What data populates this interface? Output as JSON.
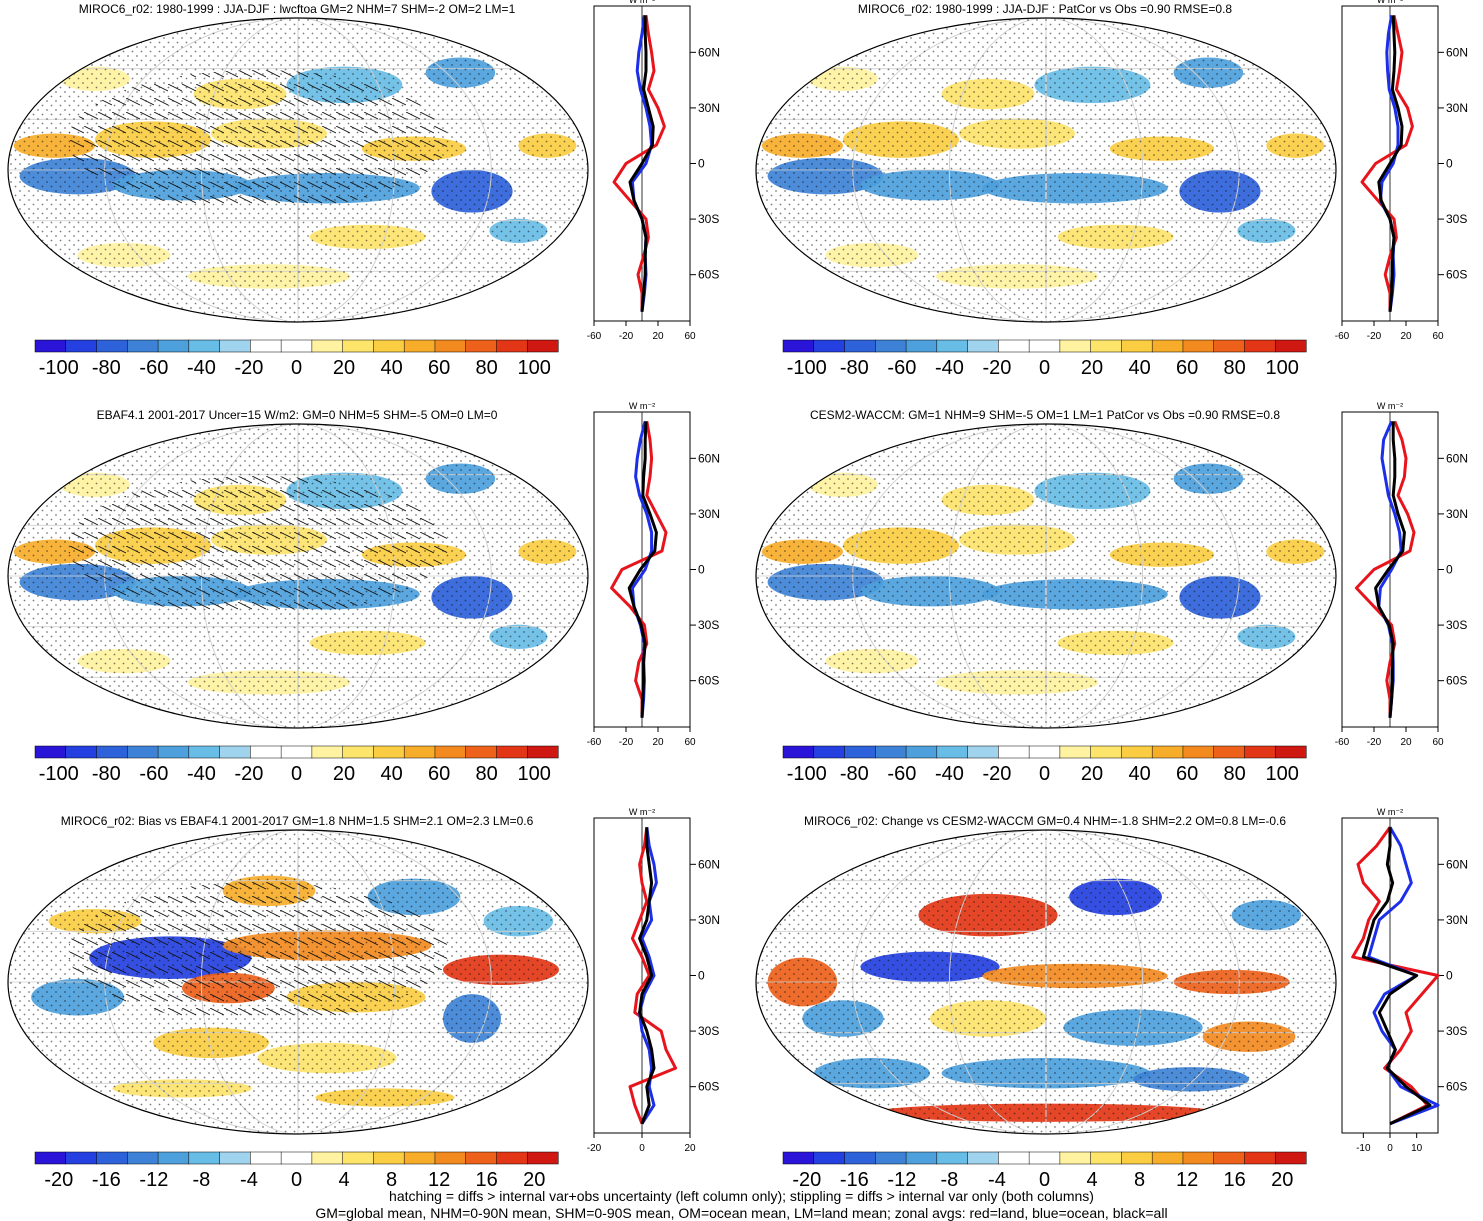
{
  "chart_data": [
    {
      "type": "heatmap",
      "title": "MIROC6_r02: 1980-1999 : JJA-DJF : lwcftoa GM=2 NHM=7 SHM=-2 OM=2 LM=1",
      "colorbar_ticks": [
        "-100",
        "-80",
        "-60",
        "-40",
        "-20",
        "0",
        "20",
        "40",
        "60",
        "80",
        "100"
      ],
      "colorbar_range": [
        -110,
        110
      ],
      "profile_x_ticks": [
        "-60",
        "-20",
        "20",
        "60"
      ],
      "profile_x_range": [
        -60,
        60
      ],
      "profile_lat_ticks": [
        "60N",
        "30N",
        "0",
        "30S",
        "60S"
      ],
      "profile_unit": "W m⁻²",
      "series": [
        {
          "name": "land",
          "color": "#e8141c",
          "lat": [
            80,
            70,
            60,
            50,
            40,
            30,
            20,
            10,
            0,
            -10,
            -20,
            -30,
            -40,
            -50,
            -60,
            -70,
            -80
          ],
          "values": [
            5,
            8,
            12,
            15,
            8,
            20,
            28,
            18,
            -20,
            -35,
            -15,
            5,
            8,
            2,
            -5,
            0,
            0
          ]
        },
        {
          "name": "ocean",
          "color": "#1c2ee8",
          "lat": [
            80,
            70,
            60,
            50,
            40,
            30,
            20,
            10,
            0,
            -10,
            -20,
            -30,
            -40,
            -50,
            -60,
            -70,
            -80
          ],
          "values": [
            3,
            0,
            -4,
            -6,
            -2,
            5,
            10,
            12,
            5,
            -12,
            -10,
            0,
            5,
            4,
            5,
            3,
            0
          ]
        },
        {
          "name": "all",
          "color": "#000000",
          "lat": [
            80,
            70,
            60,
            50,
            40,
            30,
            20,
            10,
            0,
            -10,
            -20,
            -30,
            -40,
            -50,
            -60,
            -70,
            -80
          ],
          "values": [
            4,
            4,
            5,
            5,
            2,
            8,
            14,
            13,
            0,
            -15,
            -10,
            0,
            5,
            4,
            4,
            2,
            0
          ]
        }
      ]
    },
    {
      "type": "heatmap",
      "title": "MIROC6_r02: 1980-1999 : JJA-DJF : PatCor vs Obs =0.90 RMSE=0.8",
      "colorbar_ticks": [
        "-100",
        "-80",
        "-60",
        "-40",
        "-20",
        "0",
        "20",
        "40",
        "60",
        "80",
        "100"
      ],
      "colorbar_range": [
        -110,
        110
      ],
      "profile_x_ticks": [
        "-60",
        "-20",
        "20",
        "60"
      ],
      "profile_x_range": [
        -60,
        60
      ],
      "profile_lat_ticks": [
        "60N",
        "30N",
        "0",
        "30S",
        "60S"
      ],
      "profile_unit": "W m⁻²",
      "series": [
        {
          "name": "land",
          "color": "#e8141c",
          "lat": [
            80,
            70,
            60,
            50,
            40,
            30,
            20,
            10,
            0,
            -10,
            -20,
            -30,
            -40,
            -50,
            -60,
            -70,
            -80
          ],
          "values": [
            5,
            10,
            15,
            12,
            8,
            22,
            28,
            20,
            -18,
            -35,
            -15,
            5,
            8,
            0,
            -6,
            0,
            0
          ]
        },
        {
          "name": "ocean",
          "color": "#1c2ee8",
          "lat": [
            80,
            70,
            60,
            50,
            40,
            30,
            20,
            10,
            0,
            -10,
            -20,
            -30,
            -40,
            -50,
            -60,
            -70,
            -80
          ],
          "values": [
            2,
            -2,
            -4,
            -3,
            -1,
            6,
            10,
            10,
            4,
            -10,
            -12,
            0,
            5,
            4,
            5,
            3,
            0
          ]
        },
        {
          "name": "all",
          "color": "#000000",
          "lat": [
            80,
            70,
            60,
            50,
            40,
            30,
            20,
            10,
            0,
            -10,
            -20,
            -30,
            -40,
            -50,
            -60,
            -70,
            -80
          ],
          "values": [
            4,
            5,
            6,
            5,
            3,
            10,
            15,
            14,
            0,
            -14,
            -11,
            0,
            5,
            3,
            3,
            2,
            0
          ]
        }
      ]
    },
    {
      "type": "heatmap",
      "title": "EBAF4.1 2001-2017 Uncer=15 W/m2: GM=0 NHM=5 SHM=-5 OM=0 LM=0",
      "colorbar_ticks": [
        "-100",
        "-80",
        "-60",
        "-40",
        "-20",
        "0",
        "20",
        "40",
        "60",
        "80",
        "100"
      ],
      "colorbar_range": [
        -110,
        110
      ],
      "profile_x_ticks": [
        "-60",
        "-20",
        "20",
        "60"
      ],
      "profile_x_range": [
        -60,
        60
      ],
      "profile_lat_ticks": [
        "60N",
        "30N",
        "0",
        "30S",
        "60S"
      ],
      "profile_unit": "W m⁻²",
      "series": [
        {
          "name": "land",
          "color": "#e8141c",
          "lat": [
            80,
            70,
            60,
            50,
            40,
            30,
            20,
            10,
            0,
            -10,
            -20,
            -30,
            -40,
            -50,
            -60,
            -70,
            -80
          ],
          "values": [
            6,
            10,
            12,
            10,
            6,
            18,
            30,
            25,
            -25,
            -38,
            -15,
            3,
            6,
            -4,
            -8,
            0,
            0
          ]
        },
        {
          "name": "ocean",
          "color": "#1c2ee8",
          "lat": [
            80,
            70,
            60,
            50,
            40,
            30,
            20,
            10,
            0,
            -10,
            -20,
            -30,
            -40,
            -50,
            -60,
            -70,
            -80
          ],
          "values": [
            4,
            -2,
            -6,
            -8,
            -3,
            6,
            12,
            12,
            4,
            -12,
            -10,
            -2,
            3,
            2,
            3,
            2,
            0
          ]
        },
        {
          "name": "all",
          "color": "#000000",
          "lat": [
            80,
            70,
            60,
            50,
            40,
            30,
            20,
            10,
            0,
            -10,
            -20,
            -30,
            -40,
            -50,
            -60,
            -70,
            -80
          ],
          "values": [
            5,
            4,
            4,
            2,
            1,
            10,
            18,
            16,
            -2,
            -16,
            -10,
            -1,
            4,
            2,
            2,
            1,
            0
          ]
        }
      ]
    },
    {
      "type": "heatmap",
      "title": "CESM2-WACCM: GM=1 NHM=9 SHM=-5 OM=1 LM=1 PatCor vs Obs =0.90 RMSE=0.8",
      "colorbar_ticks": [
        "-100",
        "-80",
        "-60",
        "-40",
        "-20",
        "0",
        "20",
        "40",
        "60",
        "80",
        "100"
      ],
      "colorbar_range": [
        -110,
        110
      ],
      "profile_x_ticks": [
        "-60",
        "-20",
        "20",
        "60"
      ],
      "profile_x_range": [
        -60,
        60
      ],
      "profile_lat_ticks": [
        "60N",
        "30N",
        "0",
        "30S",
        "60S"
      ],
      "profile_unit": "W m⁻²",
      "series": [
        {
          "name": "land",
          "color": "#e8141c",
          "lat": [
            80,
            70,
            60,
            50,
            40,
            30,
            20,
            10,
            0,
            -10,
            -20,
            -30,
            -40,
            -50,
            -60,
            -70,
            -80
          ],
          "values": [
            6,
            15,
            20,
            18,
            10,
            22,
            30,
            25,
            -20,
            -42,
            -20,
            2,
            6,
            0,
            -4,
            0,
            0
          ]
        },
        {
          "name": "ocean",
          "color": "#1c2ee8",
          "lat": [
            80,
            70,
            60,
            50,
            40,
            30,
            20,
            10,
            0,
            -10,
            -20,
            -30,
            -40,
            -50,
            -60,
            -70,
            -80
          ],
          "values": [
            2,
            -8,
            -10,
            -6,
            -2,
            6,
            12,
            14,
            2,
            -12,
            -14,
            -2,
            3,
            4,
            4,
            2,
            0
          ]
        },
        {
          "name": "all",
          "color": "#000000",
          "lat": [
            80,
            70,
            60,
            50,
            40,
            30,
            20,
            10,
            0,
            -10,
            -20,
            -30,
            -40,
            -50,
            -60,
            -70,
            -80
          ],
          "values": [
            4,
            4,
            6,
            6,
            4,
            10,
            18,
            16,
            -2,
            -18,
            -14,
            -1,
            4,
            3,
            3,
            2,
            0
          ]
        }
      ]
    },
    {
      "type": "heatmap",
      "title": "MIROC6_r02: Bias vs EBAF4.1 2001-2017 GM=1.8 NHM=1.5 SHM=2.1 OM=2.3 LM=0.6",
      "colorbar_ticks": [
        "-20",
        "-16",
        "-12",
        "-8",
        "-4",
        "0",
        "4",
        "8",
        "12",
        "16",
        "20"
      ],
      "colorbar_range": [
        -22,
        22
      ],
      "profile_x_ticks": [
        "-20",
        "0",
        "20"
      ],
      "profile_x_range": [
        -20,
        20
      ],
      "profile_lat_ticks": [
        "60N",
        "30N",
        "0",
        "30S",
        "60S"
      ],
      "profile_unit": "W m⁻²",
      "series": [
        {
          "name": "land",
          "color": "#e8141c",
          "lat": [
            80,
            70,
            60,
            50,
            40,
            30,
            20,
            10,
            0,
            -10,
            -20,
            -30,
            -40,
            -50,
            -60,
            -70,
            -80
          ],
          "values": [
            2,
            1,
            -1,
            0,
            2,
            -1,
            -4,
            0,
            3,
            -2,
            -3,
            8,
            10,
            14,
            -5,
            -3,
            0
          ]
        },
        {
          "name": "ocean",
          "color": "#1c2ee8",
          "lat": [
            80,
            70,
            60,
            50,
            40,
            30,
            20,
            10,
            0,
            -10,
            -20,
            -30,
            -40,
            -50,
            -60,
            -70,
            -80
          ],
          "values": [
            2,
            3,
            5,
            6,
            3,
            4,
            0,
            3,
            5,
            1,
            -1,
            0,
            3,
            4,
            3,
            5,
            0
          ]
        },
        {
          "name": "all",
          "color": "#000000",
          "lat": [
            80,
            70,
            60,
            50,
            40,
            30,
            20,
            10,
            0,
            -10,
            -20,
            -30,
            -40,
            -50,
            -60,
            -70,
            -80
          ],
          "values": [
            2,
            2,
            3,
            4,
            3,
            2,
            -1,
            2,
            4,
            0,
            -1,
            2,
            4,
            5,
            2,
            3,
            0
          ]
        }
      ]
    },
    {
      "type": "heatmap",
      "title": "MIROC6_r02: Change vs CESM2-WACCM GM=0.4 NHM=-1.8 SHM=2.2 OM=0.8 LM=-0.6",
      "colorbar_ticks": [
        "-20",
        "-16",
        "-12",
        "-8",
        "-4",
        "0",
        "4",
        "8",
        "12",
        "16",
        "20"
      ],
      "colorbar_range": [
        -22,
        22
      ],
      "profile_x_ticks": [
        "-10",
        "0",
        "10"
      ],
      "profile_x_range": [
        -18,
        18
      ],
      "profile_lat_ticks": [
        "60N",
        "30N",
        "0",
        "30S",
        "60S"
      ],
      "profile_unit": "W m⁻²",
      "series": [
        {
          "name": "land",
          "color": "#e8141c",
          "lat": [
            80,
            70,
            60,
            50,
            40,
            30,
            20,
            10,
            0,
            -10,
            -20,
            -30,
            -40,
            -50,
            -60,
            -70,
            -80
          ],
          "values": [
            0,
            -5,
            -12,
            -10,
            -4,
            -8,
            -10,
            -14,
            18,
            12,
            6,
            8,
            4,
            -2,
            8,
            14,
            0
          ]
        },
        {
          "name": "ocean",
          "color": "#1c2ee8",
          "lat": [
            80,
            70,
            60,
            50,
            40,
            30,
            20,
            10,
            0,
            -10,
            -20,
            -30,
            -40,
            -50,
            -60,
            -70,
            -80
          ],
          "values": [
            0,
            4,
            6,
            8,
            4,
            -4,
            -6,
            -8,
            10,
            -2,
            -6,
            -3,
            2,
            -1,
            4,
            18,
            0
          ]
        },
        {
          "name": "all",
          "color": "#000000",
          "lat": [
            80,
            70,
            60,
            50,
            40,
            30,
            20,
            10,
            0,
            -10,
            -20,
            -30,
            -40,
            -50,
            -60,
            -70,
            -80
          ],
          "values": [
            0,
            0,
            -1,
            1,
            -1,
            -6,
            -8,
            -10,
            10,
            0,
            -4,
            -1,
            2,
            -1,
            6,
            15,
            0
          ]
        }
      ]
    }
  ],
  "footer": {
    "line1": "hatching = diffs > internal var+obs uncertainty (left column only); stippling = diffs > internal var only (both columns)",
    "line2": "GM=global mean, NHM=0-90N mean, SHM=0-90S mean, OM=ocean mean, LM=land mean; zonal avgs: red=land, blue=ocean, black=all"
  },
  "palette": [
    "#2a14d8",
    "#2440e0",
    "#2e62da",
    "#3d82d6",
    "#4da0dc",
    "#68bde6",
    "#9fd3ee",
    "#ffffff",
    "#ffffff",
    "#fff2a0",
    "#fde46b",
    "#fbcd42",
    "#f7ad2a",
    "#f38a1f",
    "#ed611a",
    "#e33616",
    "#d01812"
  ]
}
